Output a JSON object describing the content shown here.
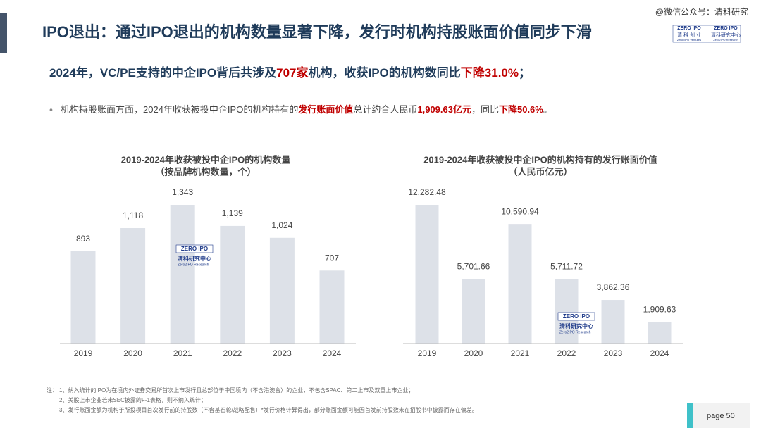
{
  "header": {
    "title": "IPO退出：通过IPO退出的机构数量显著下降，发行时机构持股账面价值同步下滑",
    "watermark": "@微信公众号：清科研究",
    "logo": {
      "mark": "ZERO IPO",
      "left": "清 科 创 业",
      "right": "清科研究中心",
      "sub_left": "Zero2IPO Ventures",
      "sub_right": "Zero2IPO Research"
    },
    "headline": [
      {
        "text": "2024年，VC/PE支持的中企IPO背后共涉及",
        "color": "#1f3b5a"
      },
      {
        "text": "707家",
        "color": "#c00000"
      },
      {
        "text": "机构，收获IPO的机构数同比",
        "color": "#1f3b5a"
      },
      {
        "text": "下降31.0%",
        "color": "#c00000"
      },
      {
        "text": "；",
        "color": "#1f3b5a"
      }
    ],
    "bullet": [
      {
        "text": "机构持股账面方面，2024年收获被投中企IPO的机构持有的",
        "color": "#444444",
        "bold": false
      },
      {
        "text": "发行账面价值",
        "color": "#c00000",
        "bold": true
      },
      {
        "text": "总计约合人民币",
        "color": "#444444",
        "bold": false
      },
      {
        "text": "1,909.63亿元",
        "color": "#c00000",
        "bold": true
      },
      {
        "text": "，同比",
        "color": "#444444",
        "bold": false
      },
      {
        "text": "下降50.6%",
        "color": "#c00000",
        "bold": true
      },
      {
        "text": "。",
        "color": "#444444",
        "bold": false
      }
    ]
  },
  "chart_logo": {
    "mark": "ZERO IPO",
    "cn": "清科研究中心",
    "en": "Zero2IPO Research"
  },
  "chart_data": [
    {
      "type": "bar",
      "title": "2019-2024年收获被投中企IPO的机构数量",
      "subtitle": "（按品牌机构数量，个）",
      "categories": [
        "2019",
        "2020",
        "2021",
        "2022",
        "2023",
        "2024"
      ],
      "values": [
        893,
        1118,
        1343,
        1139,
        1024,
        707
      ],
      "value_labels": [
        "893",
        "1,118",
        "1,343",
        "1,139",
        "1,024",
        "707"
      ],
      "color": "#dde1e8"
    },
    {
      "type": "bar",
      "title": "2019-2024年收获被投中企IPO的机构持有的发行账面价值",
      "subtitle": "（人民币亿元）",
      "categories": [
        "2019",
        "2020",
        "2021",
        "2022",
        "2023",
        "2024"
      ],
      "values": [
        12282.48,
        5701.66,
        10590.94,
        5711.72,
        3862.36,
        1909.63
      ],
      "value_labels": [
        "12,282.48",
        "5,701.66",
        "10,590.94",
        "5,711.72",
        "3,862.36",
        "1,909.63"
      ],
      "color": "#dde1e8"
    }
  ],
  "notes": {
    "label": "注：",
    "items": [
      "1、纳入统计的IPO为在境内外证券交易所首次上市发行且总部位于中国境内（不含港澳台）的企业，不包含SPAC、第二上市及双重上市企业；",
      "2、美股上市企业若未SEC披露的F-1表格，则不纳入统计；",
      "3、发行账面金额为机构于所投项目首次发行前的持股数（不含基石轮/战略配售）*发行价格计算得出，部分账面金额可能因首发前持股数未在招股书中披露而存在偏差。"
    ]
  },
  "page": "page  50"
}
